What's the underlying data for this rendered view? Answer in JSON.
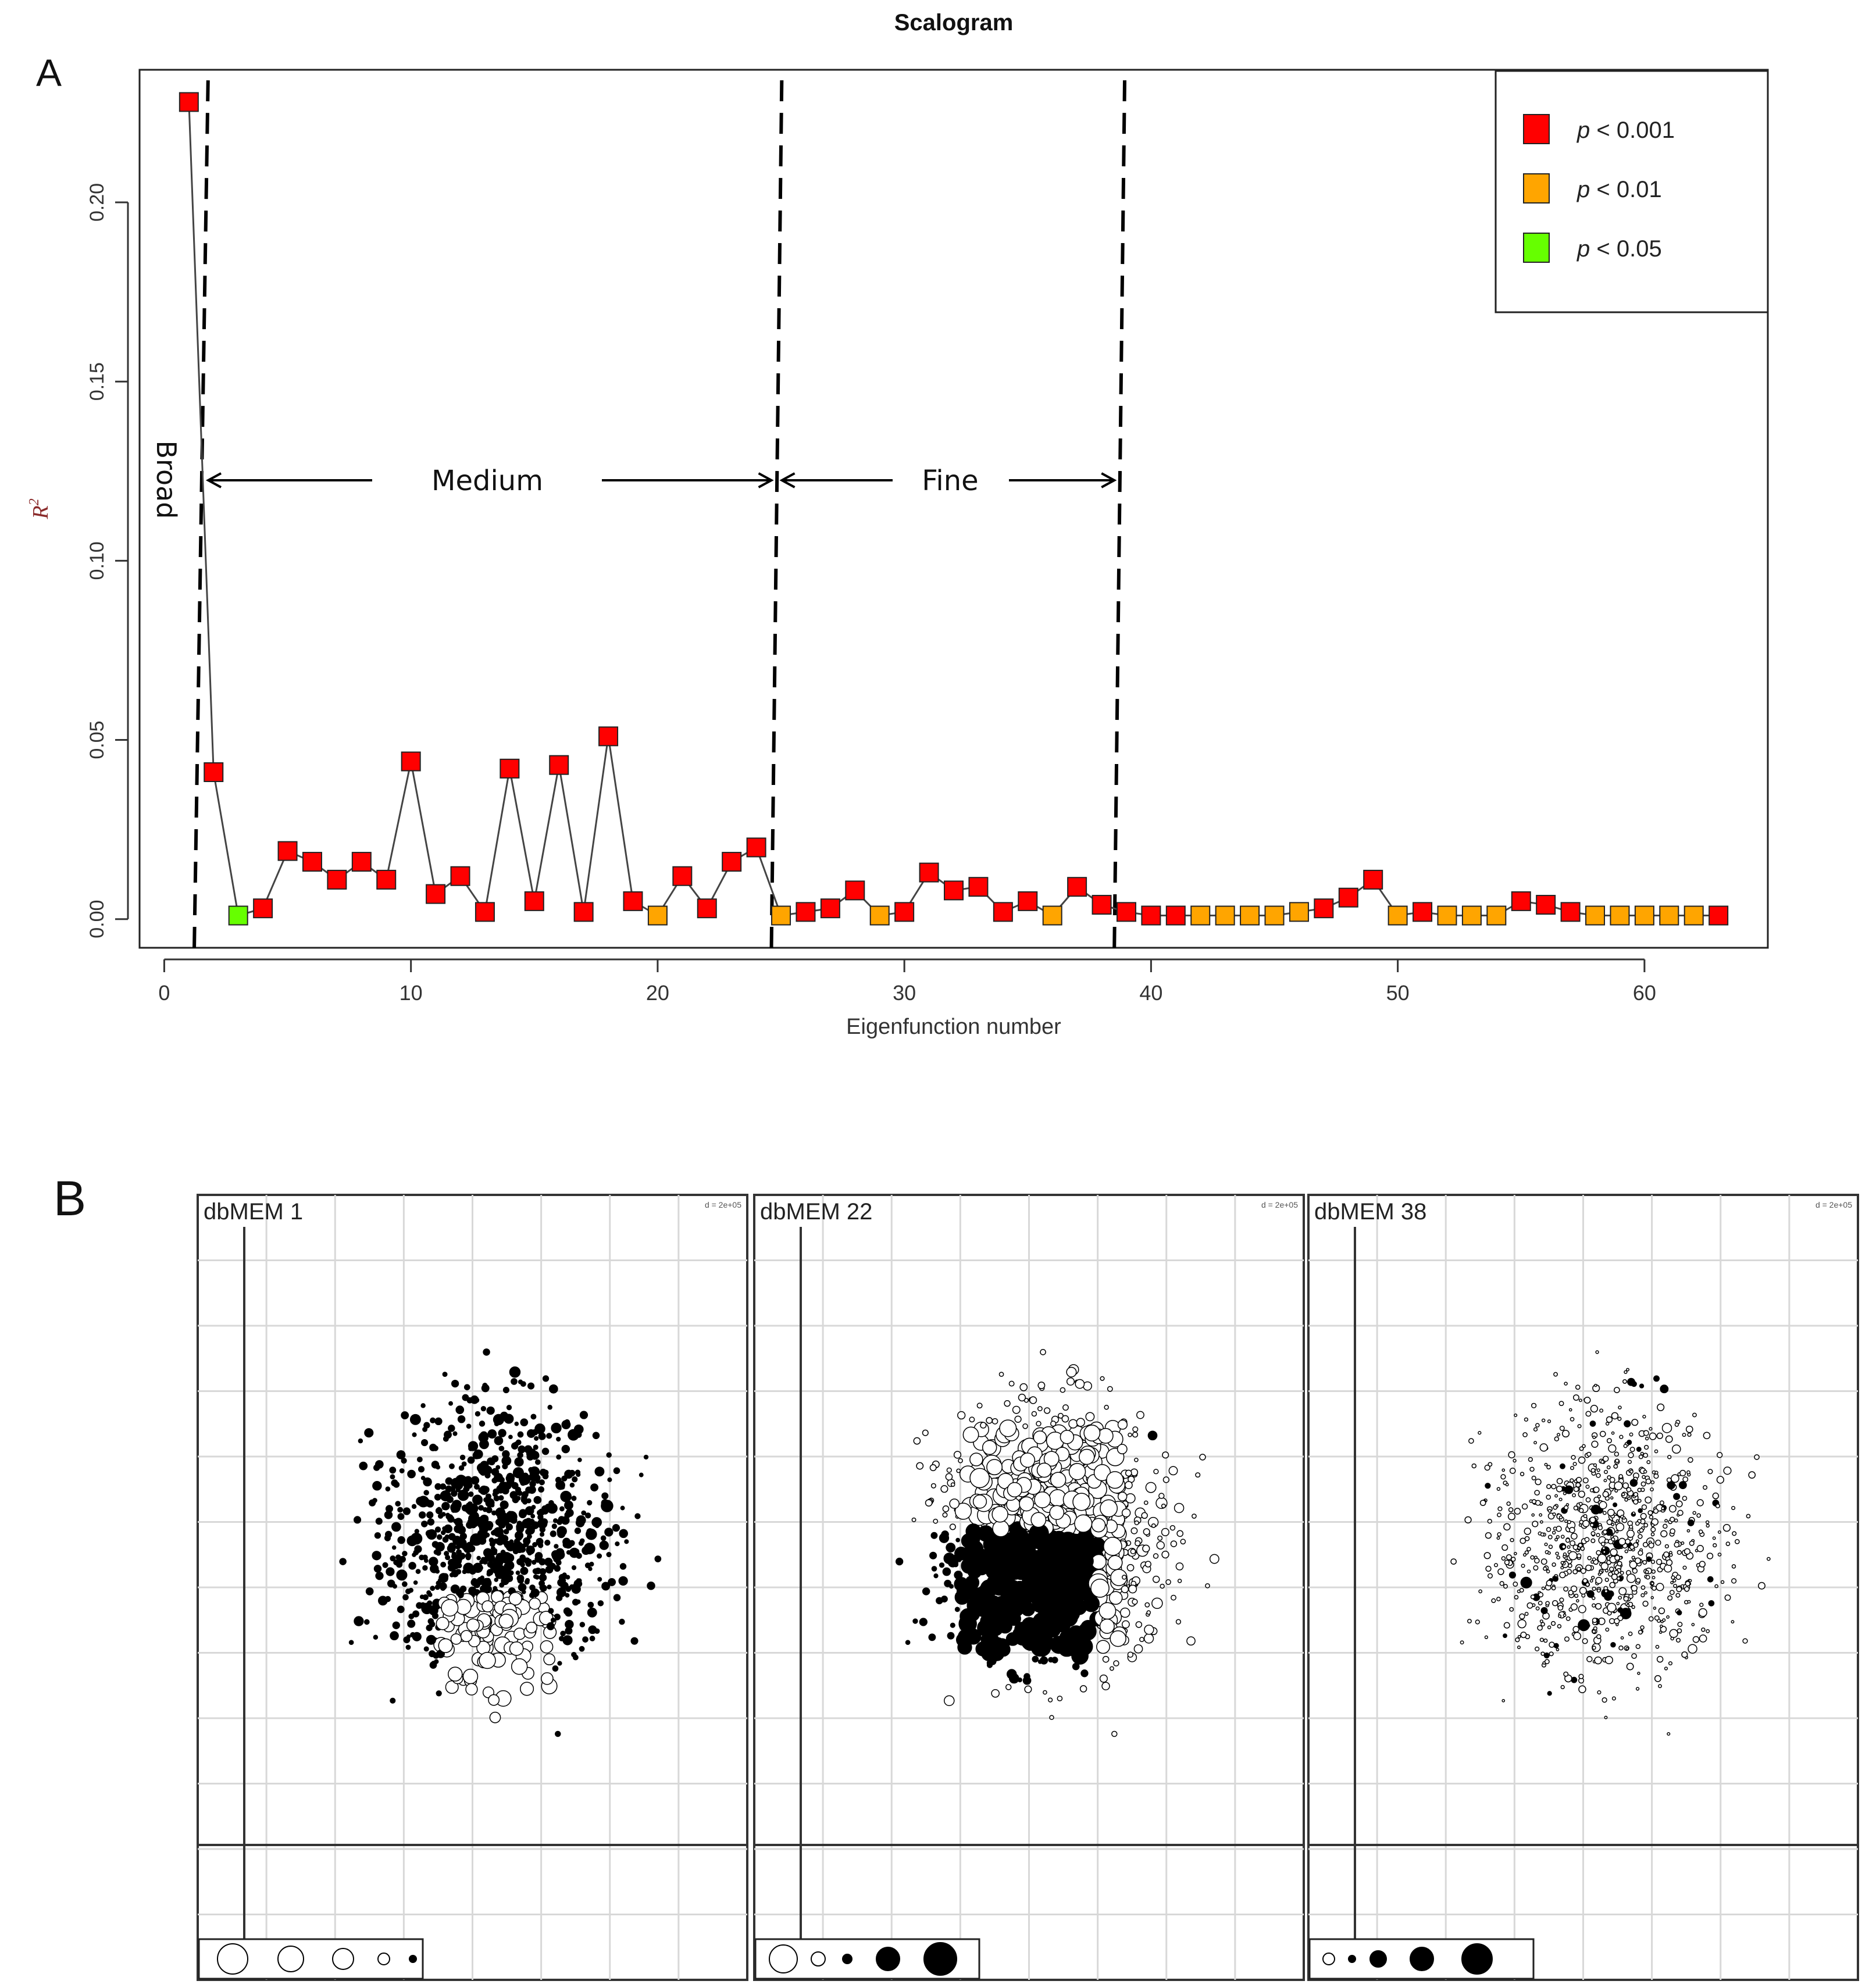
{
  "figure": {
    "panel_a_label": "A",
    "panel_b_label": "B"
  },
  "chart_data": [
    {
      "type": "scatter",
      "title": "Scalogram",
      "xlabel": "Eigenfunction number",
      "ylabel": "R2",
      "ylabel_base": "R",
      "ylabel_sup": "2",
      "xlim": [
        -1,
        65
      ],
      "ylim": [
        -0.008,
        0.237
      ],
      "x_ticks": [
        "0",
        "10",
        "20",
        "30",
        "40",
        "50",
        "60"
      ],
      "y_ticks": [
        "0.00",
        "0.05",
        "0.10",
        "0.15",
        "0.20"
      ],
      "x": [
        1,
        2,
        3,
        4,
        5,
        6,
        7,
        8,
        9,
        10,
        11,
        12,
        13,
        14,
        15,
        16,
        17,
        18,
        19,
        20,
        21,
        22,
        23,
        24,
        25,
        26,
        27,
        28,
        29,
        30,
        31,
        32,
        33,
        34,
        35,
        36,
        37,
        38,
        39,
        40,
        41,
        42,
        43,
        44,
        45,
        46,
        47,
        48,
        49,
        50,
        51,
        52,
        53,
        54,
        55,
        56,
        57,
        58,
        59,
        60,
        61,
        62,
        63
      ],
      "values": [
        0.228,
        0.041,
        0.001,
        0.003,
        0.019,
        0.016,
        0.011,
        0.016,
        0.011,
        0.044,
        0.007,
        0.012,
        0.002,
        0.042,
        0.005,
        0.043,
        0.002,
        0.051,
        0.005,
        0.001,
        0.012,
        0.003,
        0.016,
        0.02,
        0.001,
        0.002,
        0.003,
        0.008,
        0.001,
        0.002,
        0.013,
        0.008,
        0.009,
        0.002,
        0.005,
        0.001,
        0.009,
        0.004,
        0.002,
        0.001,
        0.001,
        0.001,
        0.001,
        0.001,
        0.001,
        0.002,
        0.003,
        0.006,
        0.011,
        0.001,
        0.002,
        0.001,
        0.001,
        0.001,
        0.005,
        0.004,
        0.002,
        0.001,
        0.001,
        0.001,
        0.001,
        0.001,
        0.001
      ],
      "significance": [
        "r",
        "r",
        "g",
        "r",
        "r",
        "r",
        "r",
        "r",
        "r",
        "r",
        "r",
        "r",
        "r",
        "r",
        "r",
        "r",
        "r",
        "r",
        "r",
        "o",
        "r",
        "r",
        "r",
        "r",
        "o",
        "r",
        "r",
        "r",
        "o",
        "r",
        "r",
        "r",
        "r",
        "r",
        "r",
        "o",
        "r",
        "r",
        "r",
        "r",
        "r",
        "o",
        "o",
        "o",
        "o",
        "o",
        "r",
        "r",
        "r",
        "o",
        "r",
        "o",
        "o",
        "o",
        "r",
        "r",
        "r",
        "o",
        "o",
        "o",
        "o",
        "o",
        "r"
      ],
      "colors": {
        "r": "#ff0000",
        "o": "#ffa500",
        "g": "#66ff00"
      },
      "legend": [
        {
          "key": "r",
          "symbol": "p",
          "text": " < 0.001"
        },
        {
          "key": "o",
          "symbol": "p",
          "text": " < 0.01"
        },
        {
          "key": "g",
          "symbol": "p",
          "text": " < 0.05"
        }
      ],
      "legend_position": "top-right",
      "scale_boundaries": [
        1.5,
        24.8,
        38.7
      ],
      "scale_labels": {
        "broad": "Broad",
        "medium": "Medium",
        "fine": "Fine"
      }
    },
    {
      "type": "bubble-map",
      "panels": [
        {
          "title": "dbMEM 1",
          "scale_note": "d = 2e+05"
        },
        {
          "title": "dbMEM 22",
          "scale_note": "d = 2e+05"
        },
        {
          "title": "dbMEM 38",
          "scale_note": "d = 2e+05"
        }
      ]
    }
  ]
}
